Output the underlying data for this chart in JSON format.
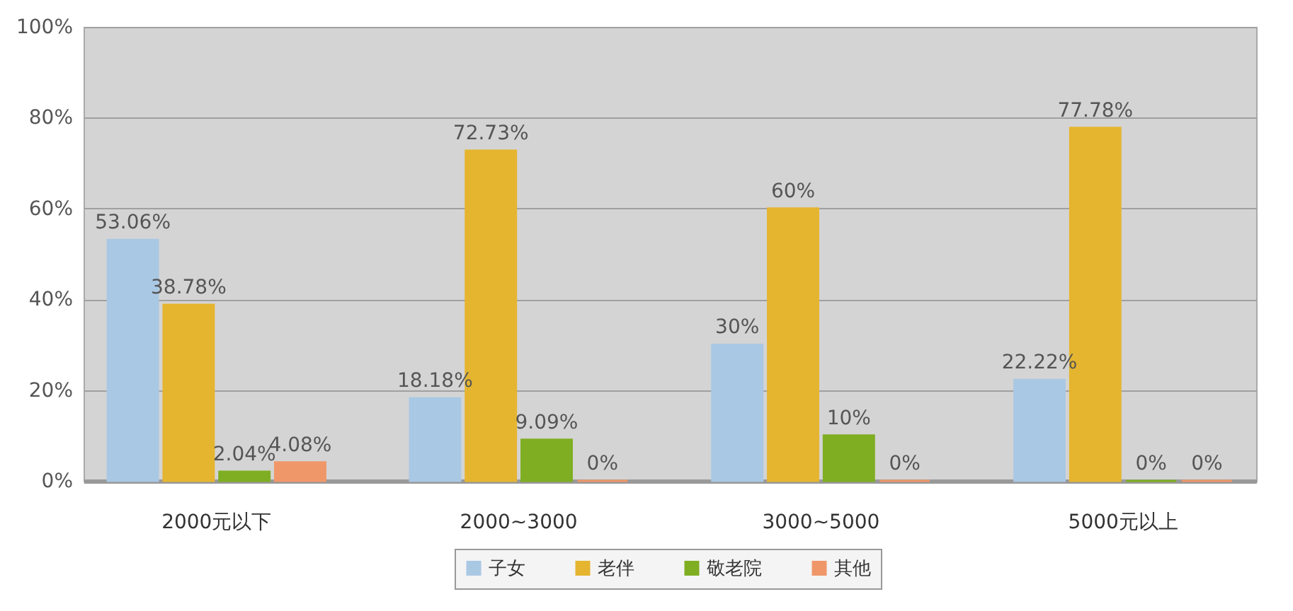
{
  "chart_data": {
    "type": "bar",
    "categories": [
      "2000元以下",
      "2000~3000",
      "3000~5000",
      "5000元以上"
    ],
    "series": [
      {
        "name": "子女",
        "color": "#a9c8e4",
        "values": [
          53.06,
          18.18,
          30,
          22.22
        ],
        "value_labels": [
          "53.06%",
          "18.18%",
          "30%",
          "22.22%"
        ]
      },
      {
        "name": "老伴",
        "color": "#e5b530",
        "values": [
          38.78,
          72.73,
          60,
          77.78
        ],
        "value_labels": [
          "38.78%",
          "72.73%",
          "60%",
          "77.78%"
        ]
      },
      {
        "name": "敬老院",
        "color": "#7fae22",
        "values": [
          2.04,
          9.09,
          10,
          0
        ],
        "value_labels": [
          "2.04%",
          "9.09%",
          "10%",
          "0%"
        ]
      },
      {
        "name": "其他",
        "color": "#f0976a",
        "values": [
          4.08,
          0,
          0,
          0
        ],
        "value_labels": [
          "4.08%",
          "0%",
          "0%",
          "0%"
        ]
      }
    ],
    "ylim": [
      0,
      100
    ],
    "yticks": [
      {
        "value": 0,
        "label": "0%"
      },
      {
        "value": 20,
        "label": "20%"
      },
      {
        "value": 40,
        "label": "40%"
      },
      {
        "value": 60,
        "label": "60%"
      },
      {
        "value": 80,
        "label": "80%"
      },
      {
        "value": 100,
        "label": "100%"
      }
    ],
    "grid": "y",
    "legend": "bottom"
  }
}
